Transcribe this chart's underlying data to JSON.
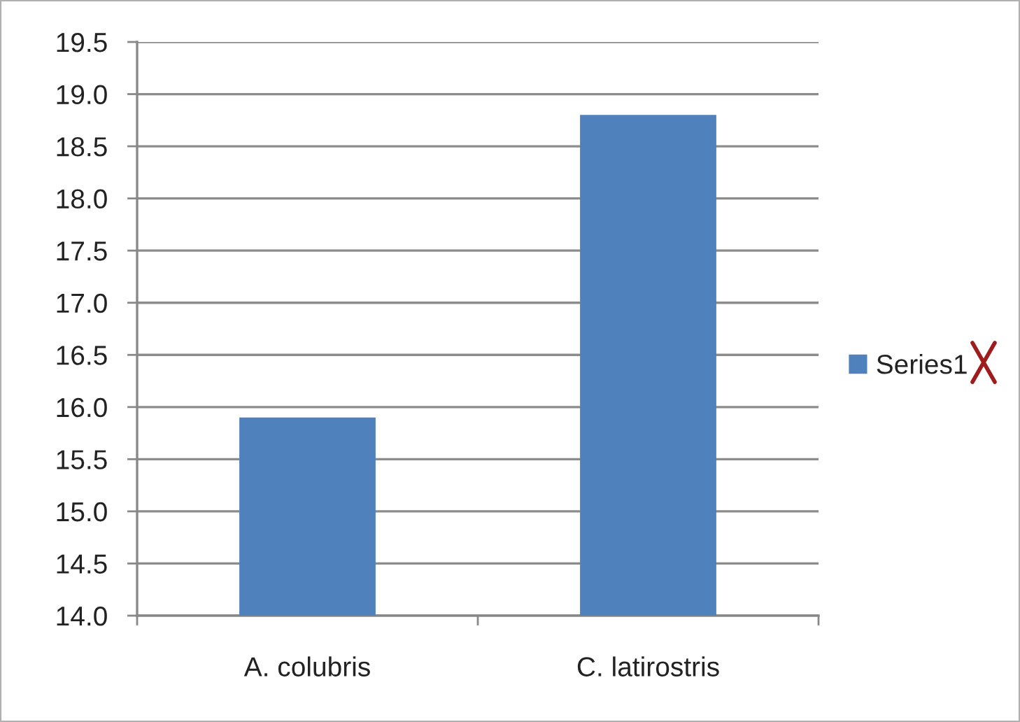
{
  "chart_data": {
    "type": "bar",
    "categories": [
      "A. colubris",
      "C. latirostris"
    ],
    "series": [
      {
        "name": "Series1",
        "color": "#4f81bd",
        "values": [
          15.9,
          18.8
        ]
      }
    ],
    "ylim": [
      14.0,
      19.5
    ],
    "yticks": [
      {
        "value": 14.0,
        "label": "14.0"
      },
      {
        "value": 14.5,
        "label": "14.5"
      },
      {
        "value": 15.0,
        "label": "15.0"
      },
      {
        "value": 15.5,
        "label": "15.5"
      },
      {
        "value": 16.0,
        "label": "16.0"
      },
      {
        "value": 16.5,
        "label": "16.5"
      },
      {
        "value": 17.0,
        "label": "17.0"
      },
      {
        "value": 17.5,
        "label": "17.5"
      },
      {
        "value": 18.0,
        "label": "18.0"
      },
      {
        "value": 18.5,
        "label": "18.5"
      },
      {
        "value": 19.0,
        "label": "19.0"
      },
      {
        "value": 19.5,
        "label": "19.5"
      }
    ],
    "grid": "y",
    "legend": "right"
  }
}
